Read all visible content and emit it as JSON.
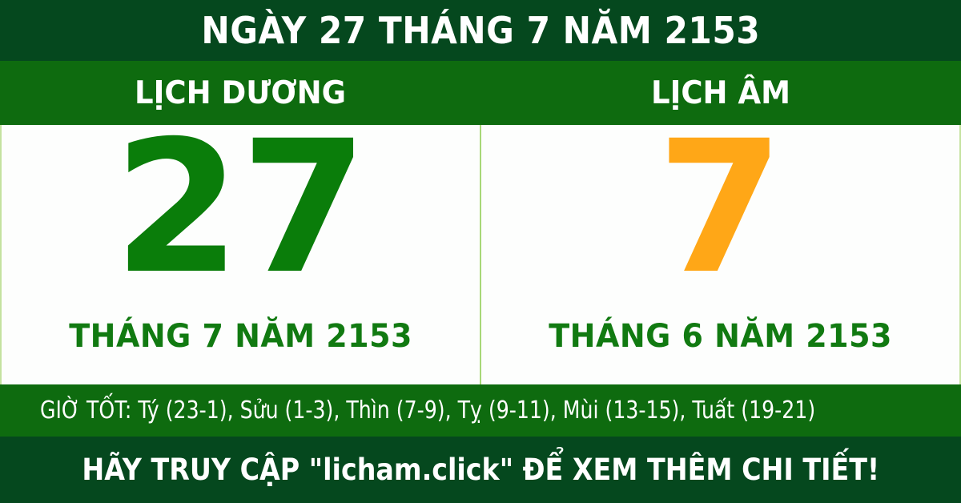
{
  "header": {
    "title": "NGÀY 27 THÁNG 7 NĂM 2153"
  },
  "solar": {
    "label": "LỊCH DƯƠNG",
    "day": "27",
    "month_year": "THÁNG 7 NĂM 2153"
  },
  "lunar": {
    "label": "LỊCH ÂM",
    "day": "7",
    "month_year": "THÁNG 6 NĂM 2153"
  },
  "good_hours": {
    "text": "GIỜ TỐT: Tý (23-1), Sửu (1-3), Thìn (7-9), Tỵ (9-11), Mùi (13-15), Tuất (19-21)"
  },
  "footer": {
    "text": "HÃY TRUY CẬP \"licham.click\" ĐỂ XEM THÊM CHI TIẾT!"
  },
  "colors": {
    "dark_green": "#05481e",
    "medium_green": "#0e6b0f",
    "solar_day": "#0a7d0a",
    "lunar_day": "#ffa717",
    "month_text_green": "#117a11",
    "divider_light_green": "#a8d878"
  }
}
